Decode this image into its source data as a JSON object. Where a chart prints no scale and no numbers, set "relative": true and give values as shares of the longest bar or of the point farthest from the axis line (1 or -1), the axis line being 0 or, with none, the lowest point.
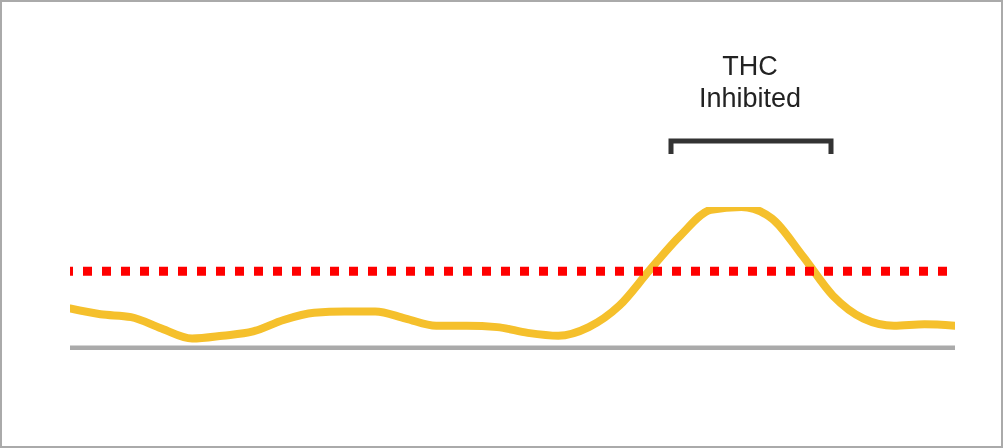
{
  "chart_data": {
    "type": "line",
    "relative": true,
    "line_style": "solid",
    "categories": [
      null,
      null,
      null,
      null,
      null,
      null,
      null,
      null,
      null,
      null,
      null,
      null,
      null,
      null,
      null,
      null,
      null,
      null,
      null,
      null,
      null,
      null,
      null,
      null,
      null,
      null,
      null,
      null,
      null,
      null
    ],
    "series": [
      {
        "color": "#f5c02c",
        "values": [
          0.29,
          0.25,
          0.23,
          0.15,
          0.08,
          0.1,
          0.13,
          0.21,
          0.26,
          0.27,
          0.27,
          0.22,
          0.17,
          0.17,
          0.16,
          0.12,
          0.1,
          0.16,
          0.31,
          0.56,
          0.8,
          0.98,
          1,
          0.92,
          0.66,
          0.38,
          0.22,
          0.17,
          0.18,
          0.17
        ]
      }
    ],
    "ref_lines": [
      {
        "axis": "y",
        "value": 0.55,
        "color": "#ff0000",
        "line_style": "dotted"
      }
    ],
    "annotations": [
      "THC Inhibited"
    ]
  }
}
